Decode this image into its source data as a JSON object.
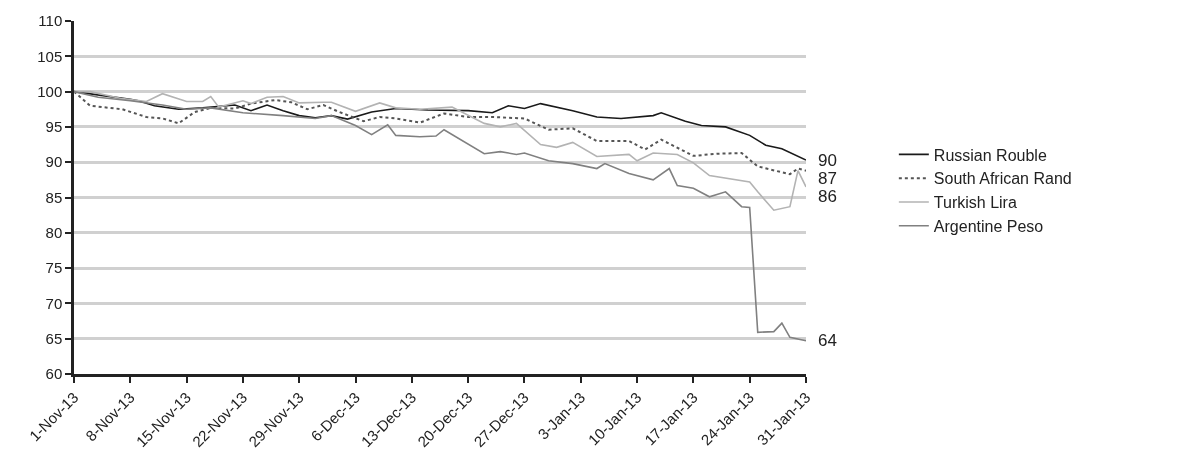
{
  "chart_data": {
    "type": "line",
    "ylim": [
      60,
      110
    ],
    "categories": [
      "1-Nov-13",
      null,
      null,
      null,
      null,
      null,
      null,
      "8-Nov-13",
      null,
      null,
      null,
      null,
      null,
      null,
      "15-Nov-13",
      null,
      null,
      null,
      null,
      null,
      null,
      "22-Nov-13",
      null,
      null,
      null,
      null,
      null,
      null,
      "29-Nov-13",
      null,
      null,
      null,
      null,
      null,
      null,
      "6-Dec-13",
      null,
      null,
      null,
      null,
      null,
      null,
      "13-Dec-13",
      null,
      null,
      null,
      null,
      null,
      null,
      "20-Dec-13",
      null,
      null,
      null,
      null,
      null,
      null,
      "27-Dec-13",
      null,
      null,
      null,
      null,
      null,
      null,
      "3-Jan-13",
      null,
      null,
      null,
      null,
      null,
      null,
      "10-Jan-13",
      null,
      null,
      null,
      null,
      null,
      null,
      "17-Jan-13",
      null,
      null,
      null,
      null,
      null,
      null,
      "24-Jan-13",
      null,
      null,
      null,
      null,
      null,
      null,
      "31-Jan-13"
    ],
    "yticks": [
      60,
      65,
      70,
      75,
      80,
      85,
      90,
      95,
      100,
      105,
      110
    ],
    "grid": "y",
    "legend": "right",
    "marker": "none",
    "annotations": [
      "90",
      "87",
      "86",
      "64"
    ],
    "series": [
      {
        "name": "Russian Rouble",
        "color": "#1a1a1a",
        "line_style": "solid",
        "values": [
          100,
          null,
          null,
          null,
          null,
          null,
          null,
          98.9,
          98.7,
          null,
          98,
          null,
          null,
          97.5,
          null,
          null,
          97.7,
          null,
          null,
          null,
          98.1,
          null,
          97.3,
          null,
          98.1,
          null,
          97.3,
          null,
          96.6,
          null,
          96.3,
          null,
          96.6,
          null,
          96.1,
          null,
          null,
          97.1,
          null,
          null,
          97.6,
          null,
          null,
          null,
          97.4,
          null,
          null,
          null,
          null,
          97.3,
          null,
          null,
          97,
          null,
          98,
          null,
          97.6,
          null,
          98.3,
          null,
          null,
          null,
          97.3,
          null,
          null,
          96.4,
          null,
          null,
          96.2,
          null,
          null,
          null,
          96.6,
          97,
          null,
          null,
          95.8,
          null,
          95.2,
          null,
          null,
          95,
          null,
          null,
          93.8,
          null,
          92.4,
          null,
          91.9,
          null,
          null,
          90.3
        ]
      },
      {
        "name": "South African Rand",
        "color": "#555555",
        "line_style": "dotted",
        "values": [
          100,
          null,
          98,
          null,
          null,
          null,
          97.5,
          null,
          null,
          96.4,
          null,
          96.2,
          null,
          95.5,
          null,
          97.1,
          null,
          97.7,
          null,
          null,
          97.6,
          null,
          98.3,
          null,
          null,
          98.8,
          null,
          98.5,
          null,
          97.5,
          null,
          98.1,
          null,
          97.1,
          null,
          null,
          95.8,
          null,
          96.4,
          null,
          96.2,
          null,
          null,
          95.6,
          null,
          null,
          96.9,
          null,
          null,
          96.4,
          null,
          null,
          96.4,
          null,
          null,
          null,
          96.2,
          null,
          null,
          94.6,
          null,
          null,
          94.8,
          null,
          null,
          93,
          null,
          null,
          null,
          93,
          null,
          91.8,
          null,
          93.2,
          null,
          null,
          null,
          90.9,
          null,
          null,
          91.2,
          null,
          null,
          91.3,
          null,
          89.4,
          null,
          null,
          null,
          88.3,
          89.1,
          88.8
        ]
      },
      {
        "name": "Turkish Lira",
        "color": "#b3b3b3",
        "line_style": "solid",
        "values": [
          100,
          null,
          100,
          null,
          null,
          null,
          99,
          null,
          null,
          98.6,
          null,
          99.7,
          null,
          null,
          98.6,
          null,
          98.6,
          99.3,
          97.8,
          null,
          null,
          98.7,
          98.3,
          null,
          99.2,
          null,
          99.3,
          null,
          98.4,
          null,
          null,
          98.5,
          98.5,
          null,
          null,
          97.2,
          null,
          null,
          98.4,
          null,
          97.7,
          null,
          null,
          97.5,
          null,
          null,
          null,
          97.8,
          null,
          null,
          null,
          95.5,
          null,
          95,
          null,
          95.5,
          null,
          null,
          92.5,
          null,
          92.1,
          null,
          92.8,
          null,
          null,
          90.8,
          null,
          null,
          null,
          91.1,
          90.2,
          null,
          91.3,
          null,
          null,
          91.1,
          null,
          89.9,
          null,
          88.1,
          null,
          null,
          null,
          null,
          87.2,
          85.8,
          null,
          83.2,
          null,
          83.7,
          88.8,
          86.5
        ]
      },
      {
        "name": "Argentine Peso",
        "color": "#808080",
        "line_style": "solid",
        "values": [
          100,
          null,
          null,
          99.2,
          null,
          null,
          null,
          98.7,
          null,
          null,
          null,
          98.1,
          null,
          null,
          97.5,
          null,
          null,
          97.7,
          null,
          null,
          null,
          97,
          null,
          null,
          null,
          null,
          96.6,
          null,
          null,
          null,
          96.2,
          null,
          96.6,
          null,
          null,
          95.2,
          null,
          93.9,
          null,
          95.3,
          93.8,
          null,
          null,
          93.6,
          null,
          93.7,
          94.6,
          null,
          null,
          null,
          null,
          91.2,
          null,
          91.5,
          null,
          91.1,
          91.3,
          null,
          null,
          90.2,
          null,
          null,
          89.8,
          null,
          null,
          89.1,
          89.8,
          null,
          null,
          88.4,
          null,
          null,
          87.5,
          null,
          89.1,
          86.7,
          null,
          86.3,
          null,
          85.1,
          null,
          85.8,
          null,
          83.7,
          83.6,
          65.9,
          null,
          66,
          67.2,
          65.2,
          null,
          64.7
        ]
      }
    ]
  }
}
